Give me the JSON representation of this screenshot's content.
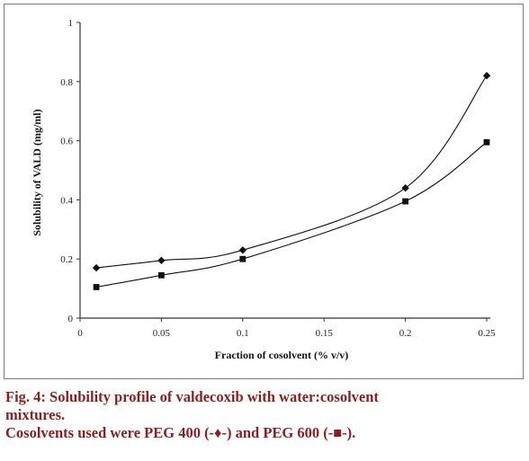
{
  "chart_data": {
    "type": "line",
    "xlabel": "Fraction of cosolvent (% v/v)",
    "ylabel": "Solubility of VALD (mg/ml)",
    "xlim": [
      0,
      0.25
    ],
    "ylim": [
      0,
      1
    ],
    "x_ticks": [
      "0",
      "0.05",
      "0.1",
      "0.15",
      "0.2",
      "0.25"
    ],
    "y_ticks": [
      "0",
      "0.2",
      "0.4",
      "0.6",
      "0.8",
      "1"
    ],
    "grid": false,
    "series": [
      {
        "marker": "diamond",
        "color": "#111111",
        "x": [
          0.01,
          0.05,
          0.1,
          0.2,
          0.25
        ],
        "y": [
          0.17,
          0.195,
          0.23,
          0.44,
          0.82
        ]
      },
      {
        "marker": "square",
        "color": "#111111",
        "x": [
          0.01,
          0.05,
          0.1,
          0.2,
          0.25
        ],
        "y": [
          0.105,
          0.145,
          0.2,
          0.395,
          0.595
        ]
      }
    ]
  },
  "caption": {
    "line1": "Fig. 4: Solubility profile of valdecoxib with water:cosolvent",
    "line2": "mixtures.",
    "line3": "Cosolvents used were PEG 400 (-♦-) and PEG 600 (-■-)."
  }
}
